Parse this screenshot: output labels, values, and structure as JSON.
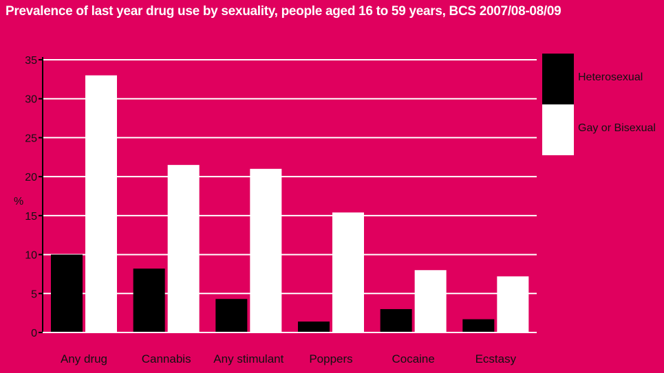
{
  "chart_data": {
    "type": "bar",
    "title": "Prevalence of last year drug use by sexuality, people aged 16 to 59 years, BCS 2007/08-08/09",
    "ylabel": "%",
    "xlabel": "",
    "ylim": [
      0,
      35
    ],
    "yticks": [
      "0",
      "5",
      "10",
      "15",
      "20",
      "25",
      "30",
      "35"
    ],
    "categories": [
      "Any drug",
      "Cannabis",
      "Any stimulant",
      "Poppers",
      "Cocaine",
      "Ecstasy"
    ],
    "series": [
      {
        "name": "Heterosexual",
        "color": "#000000",
        "values": [
          10.0,
          8.2,
          4.3,
          1.4,
          3.0,
          1.7
        ]
      },
      {
        "name": "Gay or Bisexual",
        "color": "#ffffff",
        "values": [
          33.0,
          21.5,
          21.0,
          15.4,
          8.0,
          7.2
        ]
      }
    ],
    "grid": true,
    "legend_position": "top-right"
  },
  "colors": {
    "background": "#e0005e",
    "gridline": "#ffffff",
    "axis": "#000000",
    "text": "#111111"
  }
}
